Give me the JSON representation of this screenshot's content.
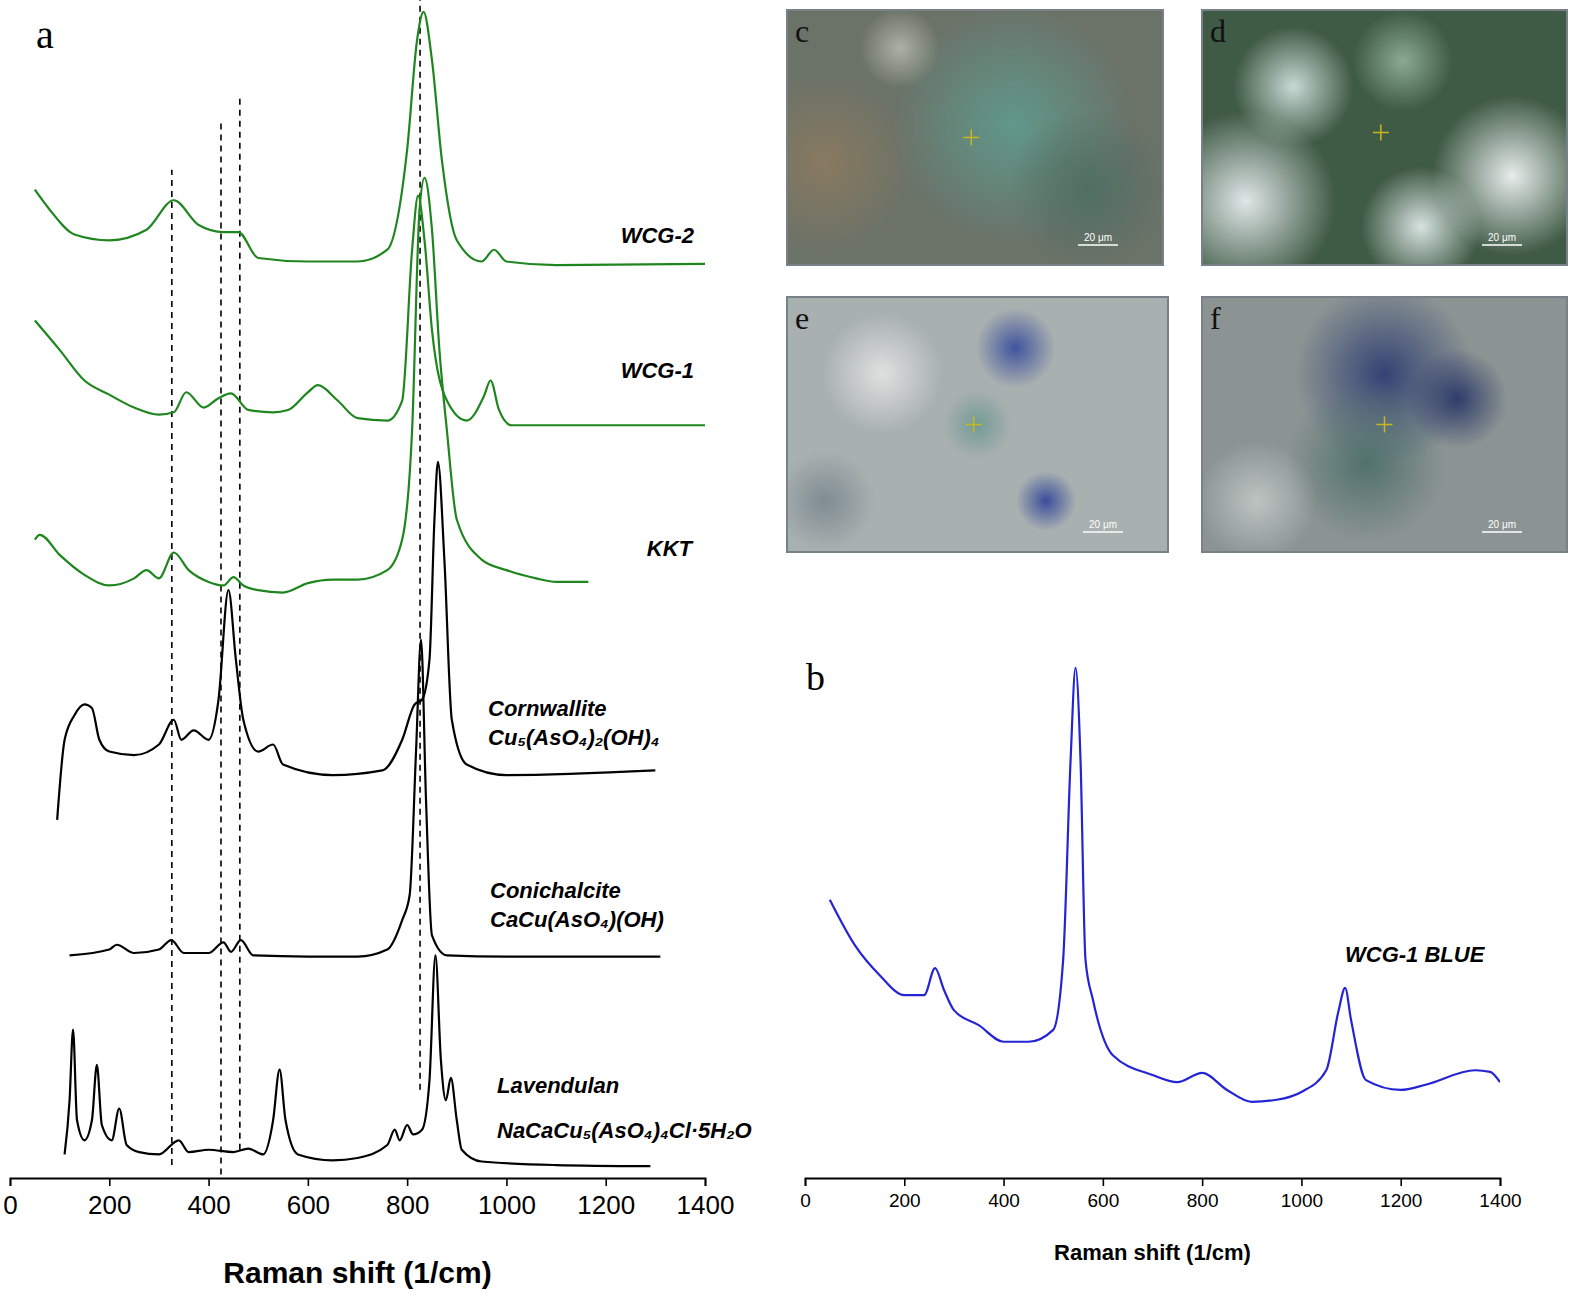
{
  "chart_data": [
    {
      "type": "line",
      "panel": "a",
      "x_label": "Raman shift (1/cm)",
      "xlim": [
        0,
        1400
      ],
      "xticks": [
        0,
        200,
        400,
        600,
        800,
        1000,
        1200,
        1400
      ],
      "ylim": [
        0,
        100
      ],
      "tick_labels": "x",
      "grid": false,
      "reference_lines": [
        {
          "x": 326,
          "y": [
            1.1,
            85.6
          ]
        },
        {
          "x": 425,
          "y": [
            0.3,
            89.8
          ]
        },
        {
          "x": 463,
          "y": [
            2.4,
            91.9
          ]
        },
        {
          "x": 826,
          "y": [
            7.5,
            100
          ]
        }
      ],
      "reference_line_style": "dashed",
      "series": [
        {
          "name": "WCG-2",
          "color": "#1f861f",
          "x": [
            50,
            80,
            130,
            200,
            275,
            330,
            380,
            430,
            460,
            500,
            600,
            700,
            760,
            800,
            820,
            833,
            850,
            870,
            900,
            950,
            975,
            1000,
            1100,
            1400
          ],
          "values": [
            83.9,
            82.2,
            80.1,
            79.6,
            80.5,
            83.0,
            80.9,
            80.3,
            80.3,
            78.1,
            77.8,
            77.8,
            78.8,
            87.3,
            96.6,
            99.0,
            94.9,
            86.4,
            79.6,
            77.8,
            78.8,
            77.8,
            77.5,
            77.6
          ]
        },
        {
          "name": "WCG-1",
          "color": "#1f861f",
          "x": [
            50,
            100,
            150,
            200,
            250,
            300,
            330,
            355,
            390,
            420,
            445,
            480,
            530,
            560,
            600,
            620,
            660,
            700,
            760,
            790,
            810,
            822,
            835,
            850,
            880,
            920,
            955,
            968,
            985,
            1010,
            1200,
            1400
          ],
          "values": [
            72.8,
            70.3,
            67.7,
            66.5,
            65.4,
            64.8,
            65.0,
            66.7,
            65.4,
            66.2,
            66.6,
            65.2,
            65.0,
            65.2,
            66.7,
            67.3,
            66.0,
            64.5,
            64.3,
            66.0,
            78.8,
            83.4,
            79.6,
            72.0,
            66.0,
            64.3,
            66.4,
            67.7,
            65.2,
            63.9,
            63.9,
            63.9
          ]
        },
        {
          "name": "KKT",
          "color": "#1f861f",
          "x": [
            50,
            60,
            100,
            150,
            200,
            250,
            275,
            300,
            330,
            360,
            400,
            430,
            450,
            470,
            500,
            550,
            600,
            650,
            700,
            760,
            790,
            810,
            825,
            835,
            850,
            865,
            880,
            900,
            950,
            1000,
            1060,
            1100,
            1165
          ],
          "values": [
            54.2,
            54.6,
            52.9,
            51.2,
            50.3,
            50.9,
            51.6,
            50.9,
            53.1,
            51.6,
            50.6,
            50.3,
            51.0,
            50.3,
            49.9,
            49.7,
            50.5,
            50.8,
            50.8,
            51.6,
            54.2,
            63.5,
            82.2,
            84.9,
            80.5,
            70.3,
            63.5,
            55.9,
            52.5,
            51.6,
            50.9,
            50.6,
            50.6
          ]
        },
        {
          "name": "Cornwallite",
          "formula": "Cu₅(AsO₄)₂(OH)₄",
          "color": "#000000",
          "x": [
            95,
            110,
            130,
            150,
            165,
            180,
            200,
            250,
            300,
            330,
            345,
            370,
            400,
            420,
            440,
            455,
            470,
            500,
            530,
            550,
            650,
            750,
            790,
            815,
            830,
            845,
            855,
            862,
            875,
            890,
            920,
            1000,
            1300
          ],
          "values": [
            30.4,
            37.2,
            39.3,
            40.2,
            39.9,
            37.2,
            36.2,
            35.9,
            36.8,
            38.9,
            37.2,
            38.0,
            37.2,
            40.6,
            49.9,
            44.0,
            38.9,
            36.2,
            36.8,
            35.1,
            34.2,
            34.6,
            37.2,
            40.2,
            40.6,
            44.0,
            55.9,
            60.8,
            52.5,
            38.9,
            35.1,
            34.2,
            34.6
          ]
        },
        {
          "name": "Conichalcite",
          "formula": "CaCu(AsO₄)(OH)",
          "color": "#000000",
          "x": [
            120,
            200,
            215,
            250,
            300,
            325,
            350,
            400,
            430,
            445,
            465,
            490,
            600,
            700,
            760,
            790,
            805,
            818,
            828,
            838,
            850,
            880,
            1000,
            1310
          ],
          "values": [
            18.9,
            19.4,
            19.8,
            19.1,
            19.4,
            20.2,
            19.1,
            19.1,
            20.0,
            19.2,
            20.2,
            18.9,
            18.8,
            18.8,
            19.4,
            21.9,
            24.0,
            36.3,
            45.7,
            32.1,
            20.6,
            18.9,
            18.8,
            18.8
          ]
        },
        {
          "name": "Lavendulan",
          "formula": "NaCaCu₅(AsO₄)₄Cl·5H₂O",
          "color": "#000000",
          "x": [
            110,
            120,
            127,
            135,
            150,
            165,
            175,
            185,
            205,
            220,
            235,
            260,
            300,
            340,
            360,
            400,
            450,
            480,
            510,
            530,
            543,
            555,
            580,
            650,
            700,
            760,
            775,
            785,
            800,
            812,
            830,
            845,
            857,
            868,
            878,
            888,
            900,
            910,
            950,
            1100,
            1290
          ],
          "values": [
            2.0,
            6.6,
            12.6,
            4.9,
            3.2,
            4.9,
            9.6,
            4.5,
            3.2,
            5.9,
            2.8,
            2.2,
            2.0,
            3.2,
            2.2,
            2.4,
            2.2,
            2.5,
            2.0,
            4.9,
            9.2,
            4.9,
            2.0,
            1.5,
            1.7,
            2.8,
            4.1,
            3.2,
            4.5,
            3.7,
            4.1,
            8.3,
            18.9,
            10.0,
            6.6,
            8.5,
            4.9,
            2.4,
            1.4,
            1.1,
            1.0
          ]
        }
      ]
    },
    {
      "type": "line",
      "panel": "b",
      "x_label": "Raman shift (1/cm)",
      "xlim": [
        0,
        1400
      ],
      "xticks": [
        0,
        200,
        400,
        600,
        800,
        1000,
        1200,
        1400
      ],
      "ylim": [
        0,
        100
      ],
      "tick_labels": "x",
      "grid": false,
      "series": [
        {
          "name": "WCG-1 BLUE",
          "color": "#2424d4",
          "x": [
            50,
            100,
            150,
            200,
            240,
            262,
            280,
            300,
            350,
            400,
            450,
            500,
            520,
            535,
            545,
            555,
            565,
            580,
            620,
            700,
            750,
            800,
            850,
            900,
            950,
            1000,
            1050,
            1075,
            1088,
            1100,
            1130,
            1200,
            1250,
            1350,
            1380,
            1400
          ],
          "values": [
            53.7,
            45.0,
            39.2,
            35.3,
            35.3,
            40.5,
            36.3,
            32.4,
            29.5,
            26.3,
            26.3,
            28.6,
            42.1,
            80.7,
            98.5,
            80.7,
            42.1,
            34.4,
            23.7,
            19.9,
            18.5,
            20.3,
            17.0,
            14.7,
            15.1,
            16.6,
            20.8,
            32.4,
            36.7,
            30.5,
            18.9,
            17.0,
            18.0,
            20.8,
            20.5,
            18.5
          ]
        }
      ]
    }
  ],
  "micrographs": [
    {
      "label": "c",
      "scale_bar": "20 μm"
    },
    {
      "label": "d",
      "scale_bar": "20 μm"
    },
    {
      "label": "e",
      "scale_bar": "20 μm"
    },
    {
      "label": "f",
      "scale_bar": "20 μm"
    }
  ]
}
